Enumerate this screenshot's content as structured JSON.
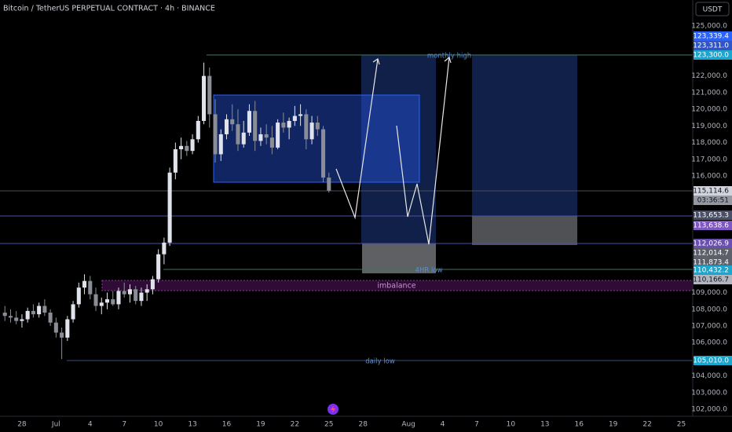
{
  "header": {
    "title": "Bitcoin / TetherUS PERPETUAL CONTRACT · 4h · BINANCE",
    "currency": "USDT"
  },
  "annotations": {
    "monthly_high": "monthly high",
    "four_hr_low": "4HR low",
    "imbalance": "imbalance",
    "daily_low": "daily low"
  },
  "chart_data": {
    "type": "candlestick",
    "x": [
      26.5,
      27,
      27.5,
      28,
      28.5,
      29,
      29.5,
      30,
      30.5,
      31,
      31.5,
      32,
      32.5,
      33,
      33.5,
      34,
      34.5,
      35,
      35.5,
      36,
      36.5,
      37,
      37.5,
      38,
      38.5,
      39,
      39.5,
      40,
      40.5,
      41,
      41.5,
      42,
      42.5,
      43,
      43.5,
      44,
      44.5,
      45,
      45.5,
      46,
      46.5,
      47,
      47.5,
      48,
      48.5,
      49,
      49.5,
      50,
      50.5,
      51,
      51.5,
      52,
      52.5,
      53,
      53.5,
      54,
      54.5,
      55
    ],
    "open": [
      107800,
      107600,
      107500,
      107300,
      107400,
      107900,
      107700,
      108200,
      107800,
      107200,
      106600,
      106300,
      107400,
      108300,
      109300,
      109700,
      108900,
      108200,
      108400,
      108600,
      108300,
      109100,
      108900,
      109200,
      108500,
      109000,
      109200,
      109800,
      111300,
      112000,
      116200,
      117600,
      117800,
      117500,
      118200,
      119300,
      122000,
      119700,
      117300,
      118500,
      119400,
      119100,
      117900,
      118600,
      119900,
      118100,
      118500,
      118300,
      117700,
      119200,
      118900,
      119300,
      119600,
      119700,
      118200,
      119200,
      118800,
      115900
    ],
    "high": [
      108200,
      108000,
      107900,
      107700,
      108100,
      108300,
      108400,
      108600,
      108000,
      107500,
      106900,
      107600,
      108500,
      109600,
      110100,
      110000,
      109300,
      108700,
      109000,
      109100,
      109300,
      109600,
      109500,
      109400,
      109300,
      109500,
      110000,
      111600,
      112300,
      116500,
      118000,
      118300,
      118100,
      118500,
      119600,
      122800,
      122500,
      120600,
      118800,
      119700,
      120300,
      120000,
      119300,
      120300,
      120500,
      118900,
      119100,
      119000,
      119400,
      119800,
      119500,
      120200,
      120300,
      120000,
      119600,
      119600,
      119000,
      116200
    ],
    "low": [
      107300,
      107200,
      107100,
      106900,
      107200,
      107500,
      107500,
      107600,
      107000,
      106300,
      105010,
      106100,
      107200,
      108100,
      108900,
      108600,
      107900,
      107700,
      108000,
      108200,
      108000,
      108700,
      108400,
      108300,
      108200,
      108500,
      108900,
      109600,
      110700,
      111800,
      115800,
      117000,
      117200,
      117300,
      118000,
      119100,
      118900,
      116800,
      116900,
      118200,
      118700,
      117500,
      117700,
      118400,
      117500,
      117800,
      117900,
      117300,
      117600,
      118600,
      118200,
      119000,
      119000,
      117600,
      117900,
      118400,
      115600,
      115000
    ],
    "close": [
      107600,
      107500,
      107300,
      107400,
      107900,
      107700,
      108200,
      107800,
      107200,
      106600,
      106300,
      107400,
      108300,
      109300,
      109700,
      108900,
      108200,
      108400,
      108600,
      108300,
      109100,
      108900,
      109200,
      108500,
      109000,
      109200,
      109800,
      111300,
      112000,
      116200,
      117600,
      117800,
      117500,
      118200,
      119300,
      122000,
      119700,
      117300,
      118500,
      119400,
      119100,
      117900,
      118600,
      119900,
      118100,
      118500,
      118300,
      117700,
      119200,
      118900,
      119300,
      119600,
      119700,
      118200,
      119200,
      118800,
      115900,
      115114.6
    ],
    "up_color": "#e0e3eb",
    "down_color": "#8a8d96",
    "xlim": [
      26.07,
      87
    ],
    "ylim": [
      101580,
      126555
    ],
    "xticks": [
      {
        "value": 28,
        "label": "28"
      },
      {
        "value": 31,
        "label": "Jul"
      },
      {
        "value": 34,
        "label": "4"
      },
      {
        "value": 37,
        "label": "7"
      },
      {
        "value": 40,
        "label": "10"
      },
      {
        "value": 43,
        "label": "13"
      },
      {
        "value": 46,
        "label": "16"
      },
      {
        "value": 49,
        "label": "19"
      },
      {
        "value": 52,
        "label": "22"
      },
      {
        "value": 55,
        "label": "25"
      },
      {
        "value": 58,
        "label": "28"
      },
      {
        "value": 62,
        "label": "Aug"
      },
      {
        "value": 65,
        "label": "4"
      },
      {
        "value": 68,
        "label": "7"
      },
      {
        "value": 71,
        "label": "10"
      },
      {
        "value": 74,
        "label": "13"
      },
      {
        "value": 77,
        "label": "16"
      },
      {
        "value": 80,
        "label": "19"
      },
      {
        "value": 83,
        "label": "22"
      },
      {
        "value": 86,
        "label": "25"
      }
    ],
    "yticks": [
      {
        "value": 125000,
        "label": "125,000.0"
      },
      {
        "value": 122000,
        "label": "122,000.0"
      },
      {
        "value": 121000,
        "label": "121,000.0"
      },
      {
        "value": 120000,
        "label": "120,000.0"
      },
      {
        "value": 119000,
        "label": "119,000.0"
      },
      {
        "value": 118000,
        "label": "118,000.0"
      },
      {
        "value": 117000,
        "label": "117,000.0"
      },
      {
        "value": 116000,
        "label": "116,000.0"
      },
      {
        "value": 109000,
        "label": "109,000.0"
      },
      {
        "value": 108000,
        "label": "108,000.0"
      },
      {
        "value": 107000,
        "label": "107,000.0"
      },
      {
        "value": 106000,
        "label": "106,000.0"
      },
      {
        "value": 104000,
        "label": "104,000.0"
      },
      {
        "value": 103000,
        "label": "103,000.0"
      },
      {
        "value": 102000,
        "label": "102,000.0"
      }
    ],
    "price_tags": [
      {
        "value": 123339.4,
        "label": "123,339.4",
        "color": "#2962ff"
      },
      {
        "value": 123311.0,
        "label": "123,311.0",
        "color": "#2f55c8"
      },
      {
        "value": 123300.0,
        "label": "123,300.0",
        "color": "#1ba6cf"
      },
      {
        "value": 115114.6,
        "label": "115,114.6",
        "color": "#d1d4dc"
      },
      {
        "value": 113653.3,
        "label": "113,653.3",
        "color": "#4a4f66"
      },
      {
        "value": 113638.6,
        "label": "113,638.6",
        "color": "#7e57c2"
      },
      {
        "value": 112026.9,
        "label": "112,026.9",
        "color": "#6a4fb3"
      },
      {
        "value": 112014.7,
        "label": "112,014.7",
        "color": "#5d606b"
      },
      {
        "value": 111873.4,
        "label": "111,873.4",
        "color": "#5d606b"
      },
      {
        "value": 110432.2,
        "label": "110,432.2",
        "color": "#1ba6cf"
      },
      {
        "value": 110166.7,
        "label": "110,166.7",
        "color": "#b2b5be"
      },
      {
        "value": 105010.0,
        "label": "105,010.0",
        "color": "#1ba6cf"
      }
    ],
    "countdown": "03:36:51"
  }
}
